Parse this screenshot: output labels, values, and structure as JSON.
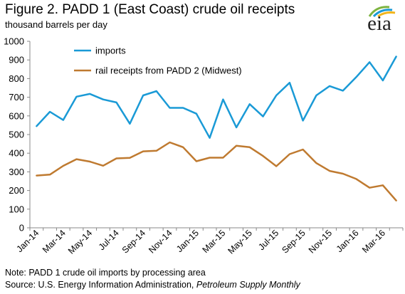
{
  "header": {
    "title": "Figure 2. PADD 1 (East Coast) crude oil receipts",
    "subtitle": "thousand barrels per day",
    "logo_text": "eia"
  },
  "footer": {
    "note": "Note: PADD 1 crude oil imports by processing area",
    "source_prefix": "Source: U.S. Energy Information Administration, ",
    "source_publication": "Petroleum Supply Monthly"
  },
  "colors": {
    "imports": "#1a9ad6",
    "rail": "#bf7a30",
    "axis": "#888888",
    "logo_green": "#7db440",
    "logo_blue": "#1a9ad6",
    "logo_yellow": "#f2b51c"
  },
  "chart_data": {
    "type": "line",
    "title": "",
    "xlabel": "",
    "ylabel": "",
    "ylim": [
      0,
      1000
    ],
    "yticks": [
      0,
      100,
      200,
      300,
      400,
      500,
      600,
      700,
      800,
      900,
      1000
    ],
    "grid": false,
    "legend_position": "top-left",
    "x": [
      "Jan-14",
      "Feb-14",
      "Mar-14",
      "Apr-14",
      "May-14",
      "Jun-14",
      "Jul-14",
      "Aug-14",
      "Sep-14",
      "Oct-14",
      "Nov-14",
      "Dec-14",
      "Jan-15",
      "Feb-15",
      "Mar-15",
      "Apr-15",
      "May-15",
      "Jun-15",
      "Jul-15",
      "Aug-15",
      "Sep-15",
      "Oct-15",
      "Nov-15",
      "Dec-15",
      "Jan-16",
      "Feb-16",
      "Mar-16",
      "Apr-16"
    ],
    "x_tick_labels": [
      "Jan-14",
      "Mar-14",
      "May-14",
      "Jul-14",
      "Sep-14",
      "Nov-14",
      "Jan-15",
      "Mar-15",
      "May-15",
      "Jul-15",
      "Sep-15",
      "Nov-15",
      "Jan-16",
      "Mar-16"
    ],
    "series": [
      {
        "name": "imports",
        "values": [
          545,
          622,
          578,
          703,
          718,
          688,
          672,
          558,
          710,
          733,
          643,
          643,
          612,
          482,
          688,
          538,
          663,
          597,
          710,
          778,
          575,
          710,
          760,
          735,
          808,
          888,
          790,
          918
        ]
      },
      {
        "name": "rail receipts from PADD 2 (Midwest)",
        "values": [
          280,
          285,
          332,
          368,
          355,
          333,
          372,
          375,
          410,
          413,
          458,
          432,
          357,
          376,
          376,
          440,
          432,
          385,
          330,
          395,
          420,
          347,
          305,
          290,
          262,
          215,
          228,
          146
        ]
      }
    ]
  }
}
